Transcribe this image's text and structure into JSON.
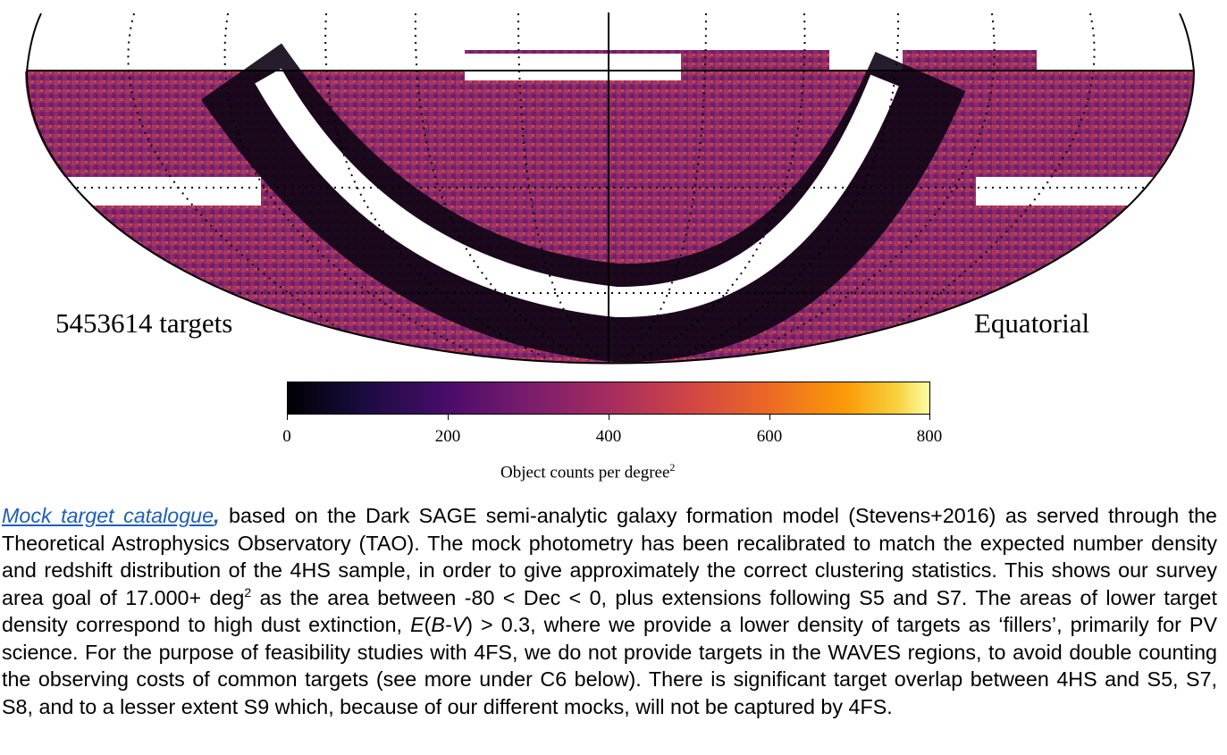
{
  "figure": {
    "targets_label": "5453614 targets",
    "frame_label": "Equatorial",
    "colormap": "inferno",
    "colorbar": {
      "ticks": [
        "0",
        "200",
        "400",
        "600",
        "800"
      ],
      "label": "Object counts per degree",
      "label_superscript": "2"
    },
    "colors": {
      "map_fill": "#9a2f68",
      "mask": "#ffffff",
      "border_dark": "#0d0415"
    }
  },
  "caption": {
    "link": "Mock target catalogue",
    "comma": ",",
    "p1": " based on the Dark SAGE semi-analytic galaxy formation model (Stevens+2016) as served through the Theoretical Astrophysics Observatory (TAO). The mock photometry has been recalibrated to match the expected number density and redshift distribution of the 4HS sample, in order to give approximately the correct clustering statistics. This shows our survey area goal of 17.000+ deg",
    "sup": "2",
    "p2": " as the area between -80 < Dec < 0, plus extensions following S5 and S7. The areas of lower target density correspond to high dust extinction, ",
    "ebv_e": "E",
    "ebv_open": "(",
    "ebv_bv": "B-V",
    "ebv_close": ") > 0.3,",
    "p3": " where we provide a lower density of targets as ‘fillers’, primarily for PV science. For the purpose of feasibility studies with 4FS, we do not provide targets in the WAVES regions, to avoid double counting the observing costs of common targets (see more under C6 below). There is significant target overlap between 4HS and S5, S7, S8, and to a lesser extent S9 which, because of our different mocks, will not be captured by 4FS."
  }
}
